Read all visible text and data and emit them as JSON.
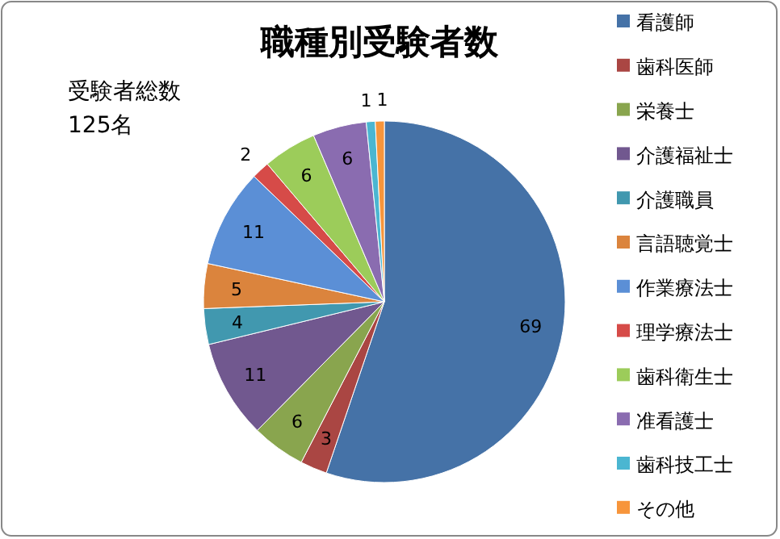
{
  "chart_data": {
    "type": "pie",
    "title": "職種別受験者数",
    "annotations": [
      "受験者総数\n125名"
    ],
    "categories": [
      "看護師",
      "歯科医師",
      "栄養士",
      "介護福祉士",
      "介護職員",
      "言語聴覚士",
      "作業療法士",
      "理学療法士",
      "歯科衛生士",
      "准看護士",
      "歯科技工士",
      "その他"
    ],
    "values": [
      69,
      3,
      6,
      11,
      4,
      5,
      11,
      2,
      6,
      6,
      1,
      1
    ],
    "colors": [
      "#4572a7",
      "#aa4643",
      "#89a54e",
      "#71588f",
      "#4198af",
      "#db843d",
      "#5b8fd6",
      "#d64b48",
      "#9ccc5a",
      "#8a6cb0",
      "#4bb6d1",
      "#f7953b"
    ],
    "data_labels": true,
    "legend": "right"
  }
}
